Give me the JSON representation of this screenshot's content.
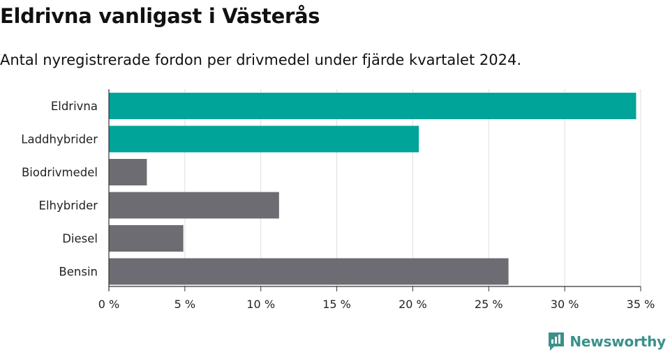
{
  "title": "Eldrivna vanligast i Västerås",
  "subtitle": "Antal nyregistrerade fordon per drivmedel under fjärde kvartalet 2024.",
  "brand": {
    "name": "Newsworthy",
    "icon": "newsworthy-logo-icon",
    "color": "#3a9189"
  },
  "colors": {
    "highlight": "#00a499",
    "default": "#6d6c72",
    "grid": "#dddddd",
    "axis": "#333333"
  },
  "chart_data": {
    "type": "bar",
    "orientation": "horizontal",
    "categories": [
      "Eldrivna",
      "Laddhybrider",
      "Biodrivmedel",
      "Elhybrider",
      "Diesel",
      "Bensin"
    ],
    "values": [
      34.7,
      20.4,
      2.5,
      11.2,
      4.9,
      26.3
    ],
    "highlighted": [
      true,
      true,
      false,
      false,
      false,
      false
    ],
    "xlim": [
      0,
      35
    ],
    "xticks": [
      0,
      5,
      10,
      15,
      20,
      25,
      30,
      35
    ],
    "xtick_labels": [
      "0 %",
      "5 %",
      "10 %",
      "15 %",
      "20 %",
      "25 %",
      "30 %",
      "35 %"
    ],
    "xlabel": "",
    "ylabel": "",
    "grid": true,
    "legend": "none"
  }
}
